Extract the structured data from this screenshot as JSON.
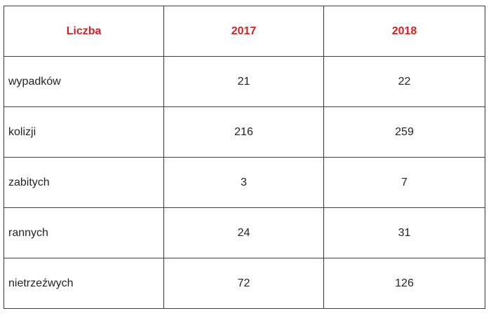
{
  "header": {
    "label": "Liczba",
    "year1": "2017",
    "year2": "2018"
  },
  "rows": [
    {
      "label": "wypadków",
      "v2017": "21",
      "v2018": "22"
    },
    {
      "label": "kolizji",
      "v2017": "216",
      "v2018": "259"
    },
    {
      "label": "zabitych",
      "v2017": "3",
      "v2018": "7"
    },
    {
      "label": "rannych",
      "v2017": "24",
      "v2018": "31"
    },
    {
      "label": "nietrzeźwych",
      "v2017": "72",
      "v2018": "126"
    }
  ],
  "colors": {
    "header_text": "#d42020",
    "border": "#3a3a3a",
    "body_text": "#222222"
  }
}
